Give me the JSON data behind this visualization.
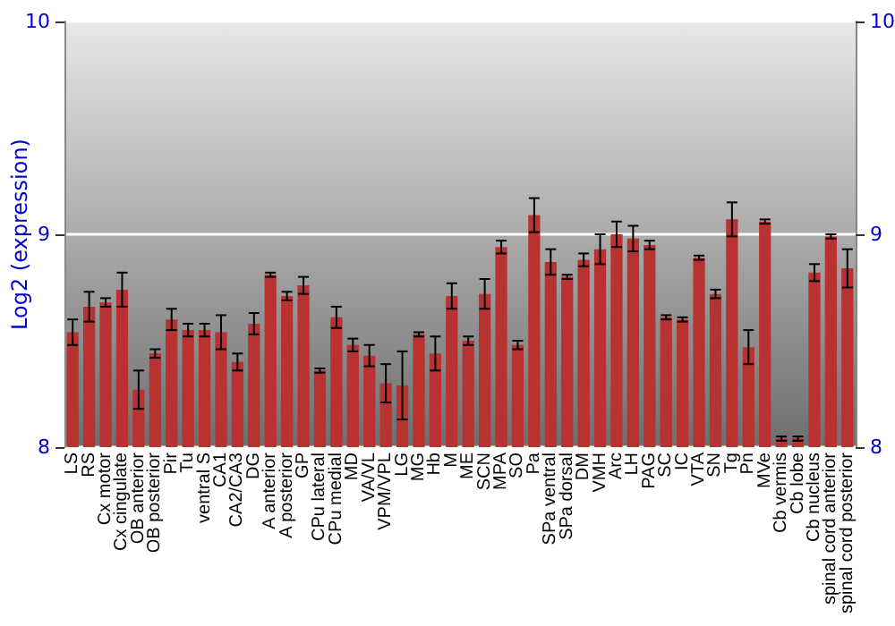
{
  "chart_data": {
    "type": "bar",
    "ylabel": "Log2 (expression)",
    "categories": [
      "LS",
      "RS",
      "Cx motor",
      "Cx cingulate",
      "OB anterior",
      "OB posterior",
      "Pir",
      "Tu",
      "ventral S",
      "CA1",
      "CA2/CA3",
      "DG",
      "A anterior",
      "A posterior",
      "GP",
      "CPu lateral",
      "CPu medial",
      "MD",
      "VA/VL",
      "VPM/VPL",
      "LG",
      "MG",
      "Hb",
      "M",
      "ME",
      "SCN",
      "MPA",
      "SO",
      "Pa",
      "SPa ventral",
      "SPa dorsal",
      "DM",
      "VMH",
      "Arc",
      "LH",
      "PAG",
      "SC",
      "IC",
      "VTA",
      "SN",
      "Tg",
      "Pn",
      "MVe",
      "Cb vermis",
      "Cb lobe",
      "Cb nucleus",
      "spinal cord anterior",
      "spinal cord posterior"
    ],
    "values": [
      8.54,
      8.66,
      8.68,
      8.74,
      8.27,
      8.44,
      8.6,
      8.55,
      8.55,
      8.54,
      8.4,
      8.58,
      8.81,
      8.71,
      8.76,
      8.36,
      8.61,
      8.48,
      8.43,
      8.3,
      8.29,
      8.53,
      8.44,
      8.71,
      8.5,
      8.72,
      8.94,
      8.48,
      9.09,
      8.87,
      8.8,
      8.88,
      8.93,
      9.0,
      8.98,
      8.95,
      8.61,
      8.6,
      8.89,
      8.72,
      9.07,
      8.47,
      9.06,
      8.04,
      8.04,
      8.82,
      8.99,
      8.84
    ],
    "errors": [
      0.06,
      0.07,
      0.02,
      0.08,
      0.09,
      0.02,
      0.05,
      0.03,
      0.03,
      0.08,
      0.04,
      0.05,
      0.01,
      0.02,
      0.04,
      0.01,
      0.05,
      0.03,
      0.05,
      0.09,
      0.16,
      0.01,
      0.08,
      0.06,
      0.02,
      0.07,
      0.03,
      0.02,
      0.08,
      0.06,
      0.01,
      0.03,
      0.07,
      0.06,
      0.06,
      0.02,
      0.01,
      0.01,
      0.01,
      0.02,
      0.08,
      0.08,
      0.01,
      0.01,
      0.01,
      0.04,
      0.01,
      0.09
    ],
    "color": "#b83232",
    "ylim": [
      8,
      10
    ],
    "yticks": [
      8,
      9,
      10
    ],
    "y2lim": [
      8,
      10
    ],
    "y2ticks": [
      8,
      9,
      10
    ],
    "grid": "y"
  }
}
